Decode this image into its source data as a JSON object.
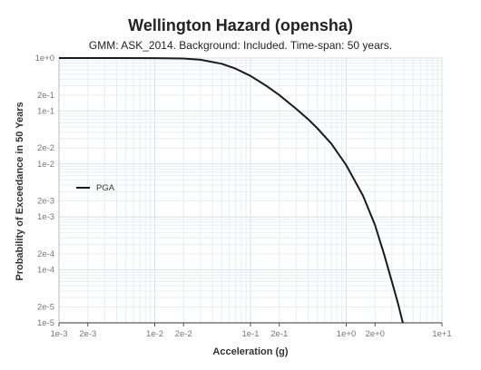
{
  "chart_data": {
    "type": "line",
    "title": "Wellington Hazard (opensha)",
    "subtitle": "GMM: ASK_2014. Background: Included. Time-span: 50 years.",
    "xlabel": "Acceleration (g)",
    "ylabel": "Probability of Exceedance in 50 Years",
    "xscale": "log",
    "yscale": "log",
    "xlim": [
      0.001,
      10
    ],
    "ylim": [
      1e-05,
      1
    ],
    "grid": true,
    "legend_position": "left",
    "x_tick_labels": [
      "1e-3",
      "2e-3",
      "1e-2",
      "2e-2",
      "1e-1",
      "2e-1",
      "1e+0",
      "2e+0",
      "1e+1"
    ],
    "y_tick_labels": [
      "1e+0",
      "2e-1",
      "1e-1",
      "2e-2",
      "1e-2",
      "2e-3",
      "1e-3",
      "2e-4",
      "1e-4",
      "2e-5",
      "1e-5"
    ],
    "series": [
      {
        "name": "PGA",
        "color": "#1a1a1a",
        "x": [
          0.001,
          0.003,
          0.01,
          0.02,
          0.03,
          0.05,
          0.07,
          0.1,
          0.15,
          0.2,
          0.3,
          0.4,
          0.5,
          0.7,
          1.0,
          1.5,
          2.0,
          2.5,
          3.0,
          3.5,
          3.9
        ],
        "y": [
          1.0,
          1.0,
          0.997,
          0.98,
          0.93,
          0.78,
          0.63,
          0.46,
          0.29,
          0.2,
          0.11,
          0.07,
          0.047,
          0.024,
          0.0095,
          0.0025,
          0.0007,
          0.00019,
          6e-05,
          2.2e-05,
          1e-05
        ]
      }
    ]
  }
}
